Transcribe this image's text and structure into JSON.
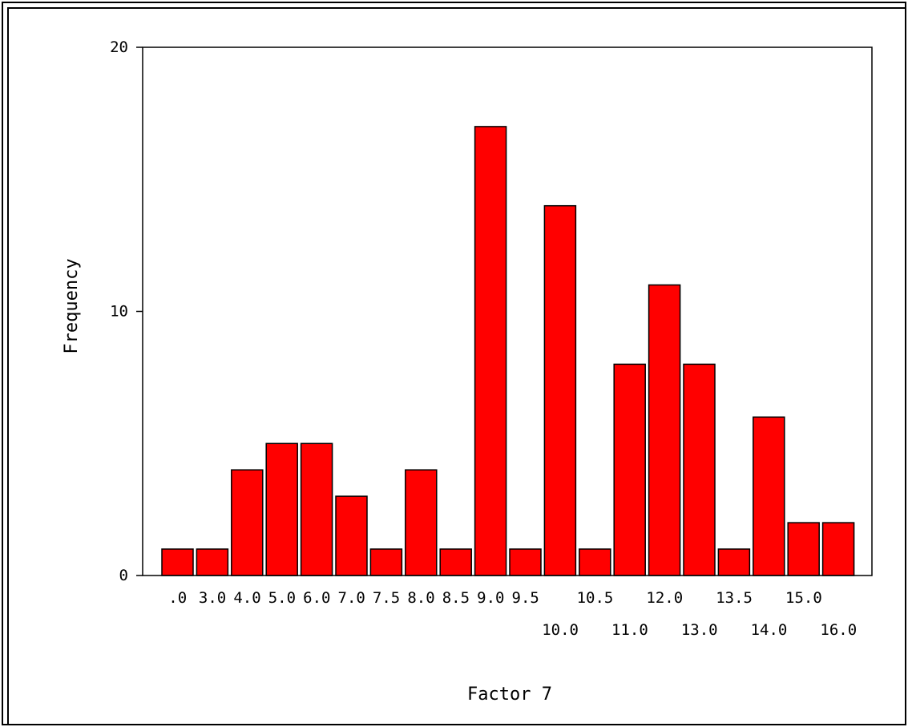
{
  "chart_data": {
    "type": "bar",
    "xlabel": "Factor 7",
    "ylabel": "Frequency",
    "ylim": [
      0,
      20
    ],
    "yticks": [
      "0",
      "10",
      "20"
    ],
    "grid": false,
    "bar_color": "#ff0000",
    "categories": [
      ".0",
      "3.0",
      "4.0",
      "5.0",
      "6.0",
      "7.0",
      "7.5",
      "8.0",
      "8.5",
      "9.0",
      "9.5",
      "10.0",
      "10.5",
      "11.0",
      "12.0",
      "13.0",
      "13.5",
      "14.0",
      "15.0",
      "16.0"
    ],
    "values": [
      1,
      1,
      4,
      5,
      5,
      3,
      1,
      4,
      1,
      17,
      1,
      14,
      1,
      8,
      11,
      8,
      1,
      6,
      2,
      2
    ]
  }
}
